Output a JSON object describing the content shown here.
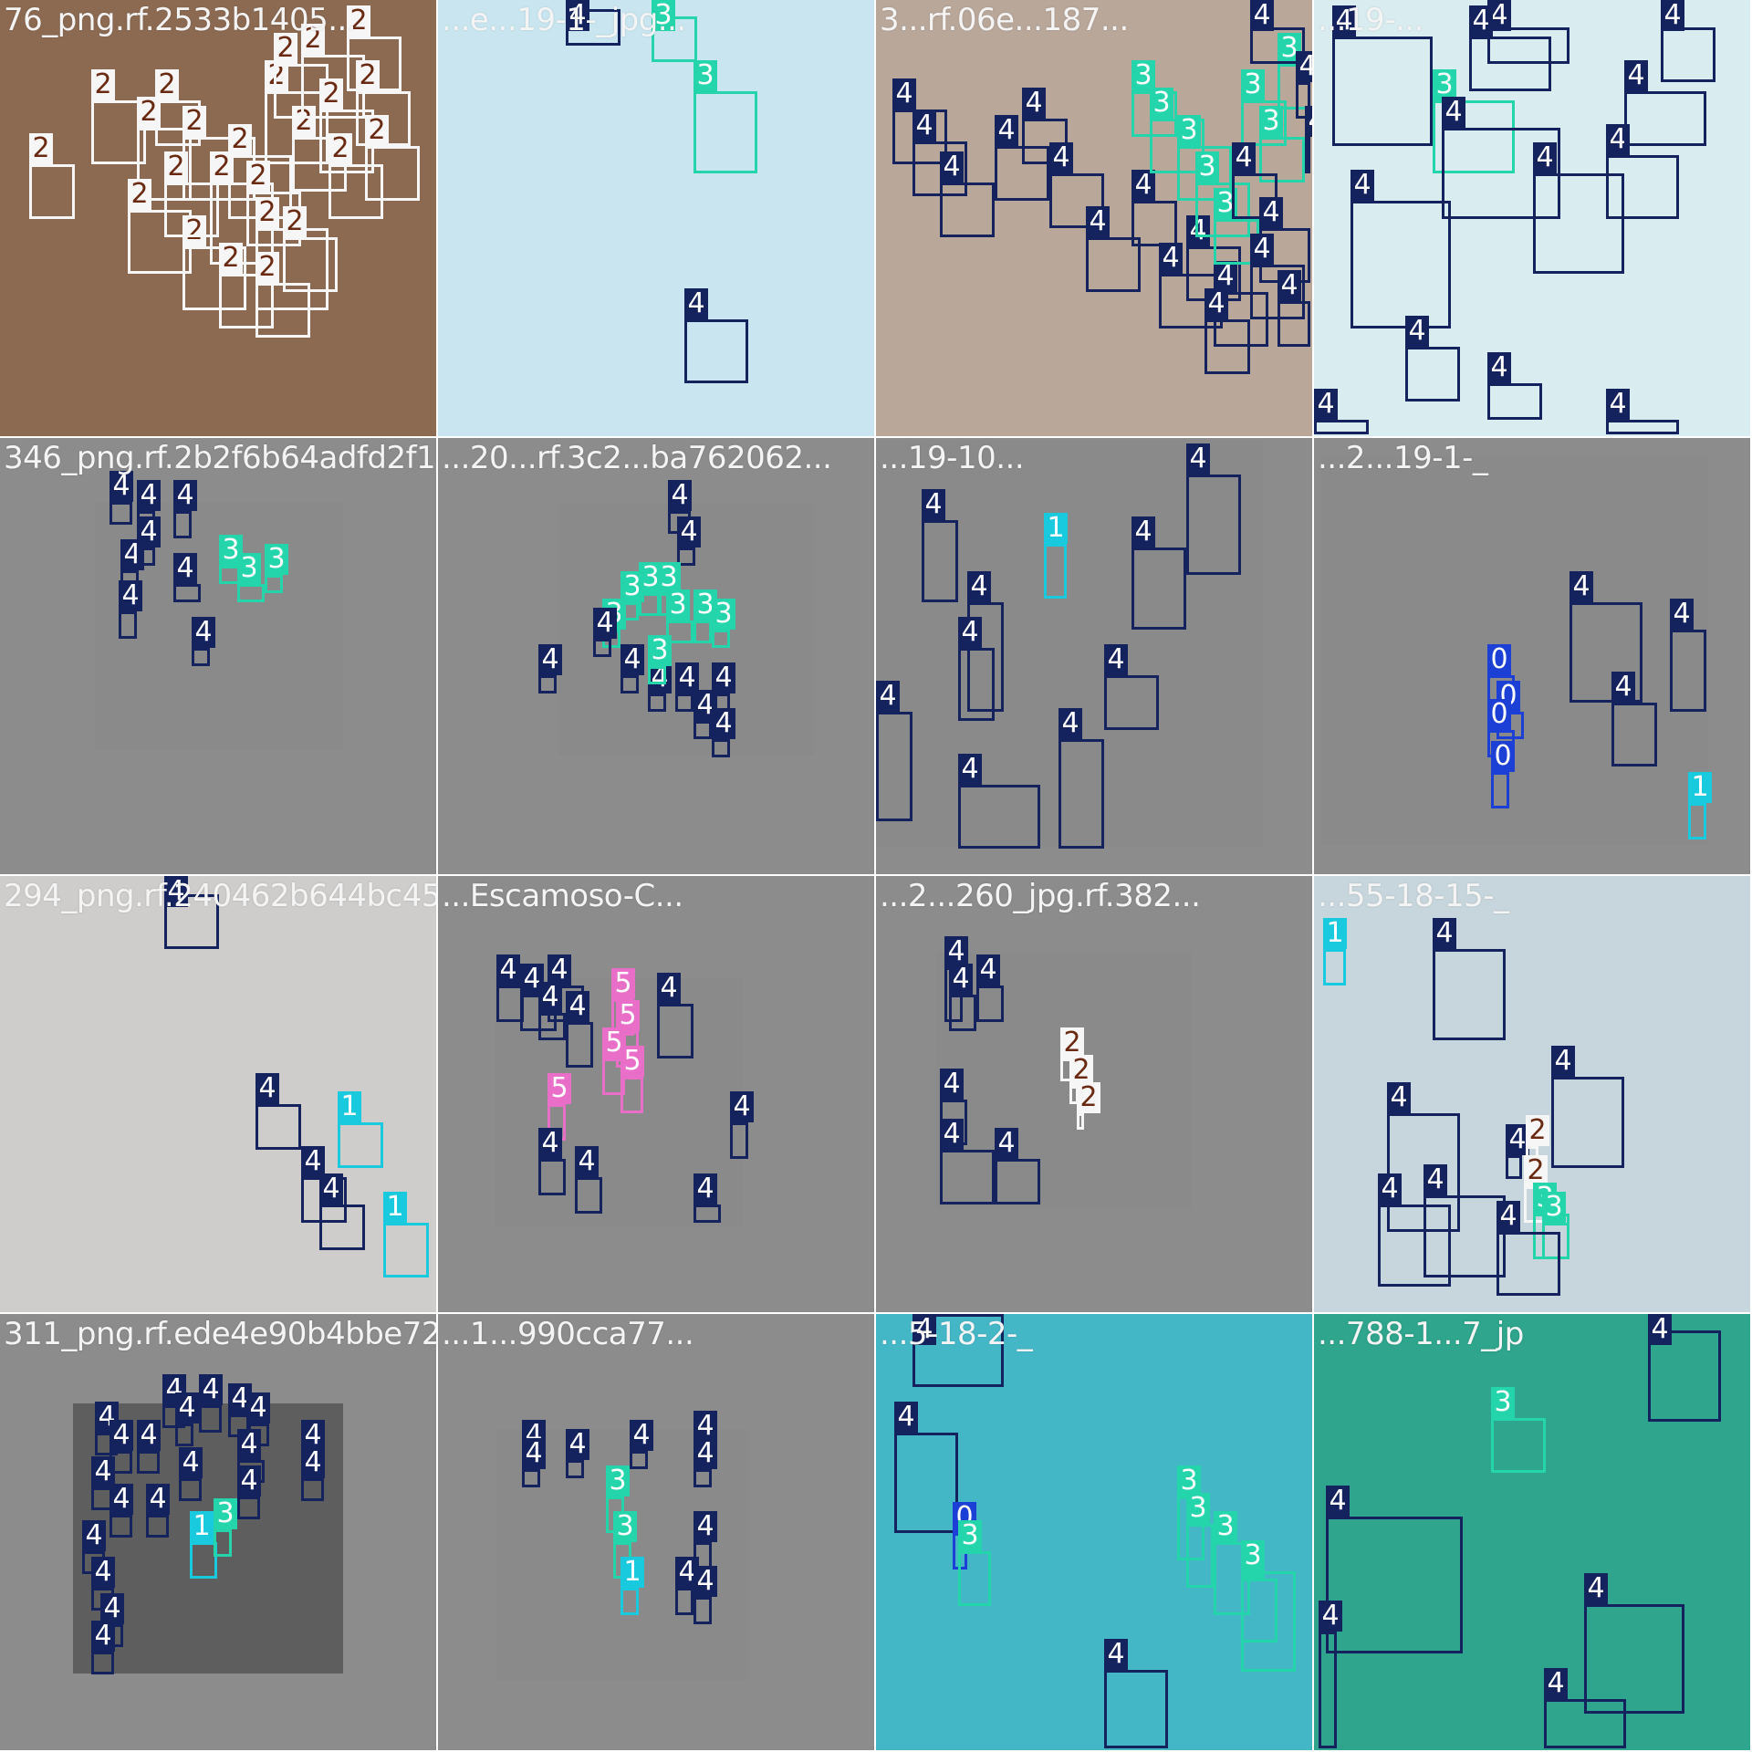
{
  "class_colors": {
    "0": "#1c3fd6",
    "1": "#19c9dd",
    "2": "#f6f6f6",
    "3": "#24d4aa",
    "4": "#14225e",
    "5": "#e86ec8"
  },
  "tiles": [
    {
      "title": "76_png.rf.2533b1405...",
      "bg": "#8c6a52",
      "labels": [
        "2",
        "2",
        "2",
        "2",
        "2",
        "2",
        "2",
        "2",
        "2",
        "2",
        "2",
        "2",
        "2",
        "2",
        "2",
        "2",
        "2",
        "2",
        "2",
        "2",
        "2",
        "2",
        "2",
        "2"
      ]
    },
    {
      "title": "...e...19-1-_jpg...",
      "bg": "#c9e6f0",
      "labels": [
        "4",
        "3",
        "4",
        "3"
      ]
    },
    {
      "title": "3...rf.06e...187...",
      "bg": "#b9a79a",
      "labels": [
        "4",
        "4",
        "4",
        "4",
        "4",
        "4",
        "4",
        "4",
        "4",
        "4",
        "4",
        "3",
        "3",
        "3",
        "3",
        "3",
        "3",
        "3",
        "3",
        "4",
        "4",
        "4",
        "4",
        "4",
        "4",
        "4",
        "4"
      ]
    },
    {
      "title": "...19-...",
      "bg": "#d9ecef",
      "labels": [
        "4",
        "4",
        "4",
        "4",
        "3",
        "4",
        "4",
        "4",
        "4",
        "4",
        "4",
        "4",
        "4",
        "4"
      ]
    },
    {
      "title": "346_png.rf.2b2f6b64adfd2f1...",
      "bg": "#8a8a8a",
      "labels": [
        "4",
        "4",
        "4",
        "4",
        "4",
        "4",
        "3",
        "3",
        "3",
        "4",
        "4"
      ]
    },
    {
      "title": "...20...rf.3c2...ba762062...",
      "bg": "#8a8a8a",
      "labels": [
        "4",
        "4",
        "3",
        "3",
        "3",
        "3",
        "3",
        "3",
        "3",
        "4",
        "4",
        "4",
        "4",
        "4",
        "4",
        "3",
        "4",
        "4"
      ]
    },
    {
      "title": "...19-10...",
      "bg": "#8a8a8a",
      "labels": [
        "4",
        "4",
        "1",
        "4",
        "4",
        "4",
        "4",
        "4",
        "4",
        "4"
      ]
    },
    {
      "title": "...2...19-1-_",
      "bg": "#8a8a8a",
      "labels": [
        "4",
        "4",
        "4",
        "0",
        "0",
        "0",
        "0",
        "1"
      ]
    },
    {
      "title": "294_png.rf.240462b644bc45...",
      "bg": "#cfcdcb",
      "labels": [
        "4",
        "4",
        "1",
        "4",
        "4",
        "1"
      ]
    },
    {
      "title": "...Escamoso-C...",
      "bg": "#8a8a8a",
      "labels": [
        "4",
        "4",
        "4",
        "4",
        "4",
        "5",
        "5",
        "5",
        "5",
        "5",
        "4",
        "4",
        "4",
        "4",
        "4"
      ]
    },
    {
      "title": "...2...260_jpg.rf.382...",
      "bg": "#8a8a8a",
      "labels": [
        "4",
        "4",
        "4",
        "2",
        "2",
        "2",
        "4",
        "4",
        "4"
      ]
    },
    {
      "title": "...55-18-15-_",
      "bg": "#c7d6dc",
      "labels": [
        "1",
        "4",
        "4",
        "4",
        "2",
        "2",
        "3",
        "3",
        "4",
        "4",
        "4",
        "4"
      ]
    },
    {
      "title": "311_png.rf.ede4e90b4bbe72...",
      "bg": "#5e5e5e",
      "labels": [
        "4",
        "4",
        "4",
        "4",
        "4",
        "4",
        "4",
        "4",
        "4",
        "4",
        "4",
        "4",
        "4",
        "4",
        "4",
        "4",
        "1",
        "3",
        "4",
        "4",
        "4",
        "4"
      ]
    },
    {
      "title": "...1...990cca77...",
      "bg": "#8a8a8a",
      "labels": [
        "4",
        "4",
        "4",
        "4",
        "4",
        "4",
        "3",
        "3",
        "1",
        "4",
        "4",
        "4"
      ]
    },
    {
      "title": "...5-18-2-_",
      "bg": "#44b7c7",
      "labels": [
        "4",
        "4",
        "0",
        "3",
        "3",
        "3",
        "3",
        "3",
        "3",
        "4"
      ]
    },
    {
      "title": "...788-1...7_jp",
      "bg": "#2ea58c",
      "labels": [
        "4",
        "3",
        "4",
        "4",
        "4",
        "4"
      ]
    }
  ]
}
